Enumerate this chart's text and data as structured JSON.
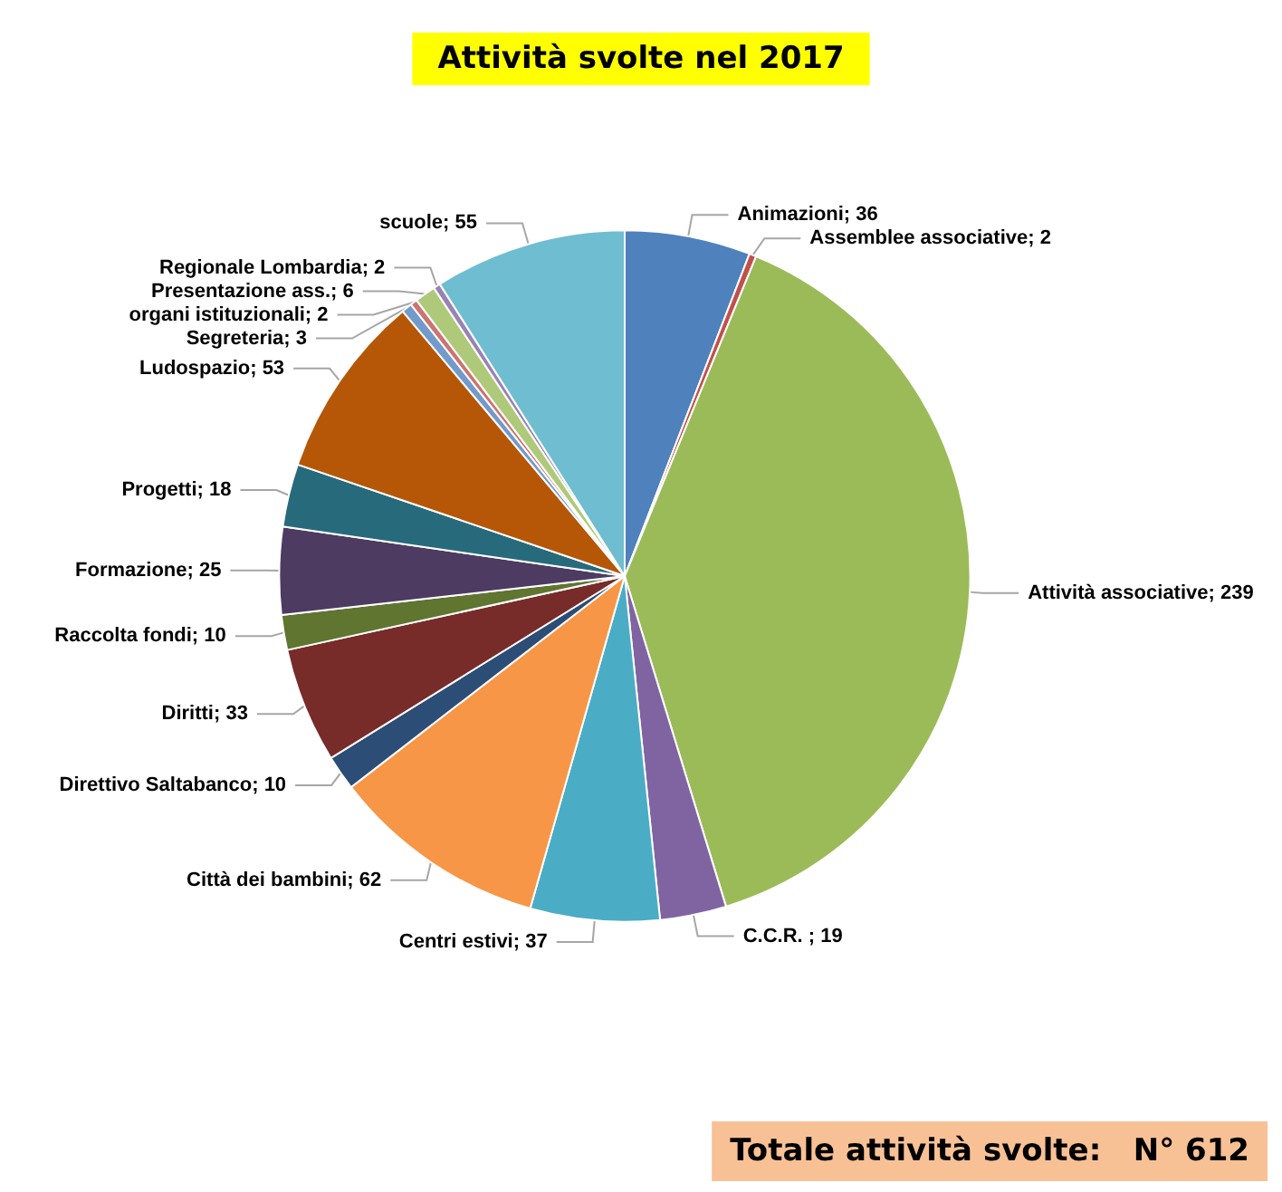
{
  "chart_data": {
    "type": "pie",
    "title": "Attività svolte nel 2017",
    "categories": [
      "Animazioni",
      "Assemblee associative",
      "Attività associative",
      "C.C.R. ",
      "Centri estivi",
      "Città dei bambini",
      "Direttivo Saltabanco",
      "Diritti",
      "Raccolta fondi",
      "Formazione",
      "Progetti",
      "Ludospazio",
      "Segreteria",
      "organi istituzionali",
      "Presentazione ass.",
      "Regionale Lombardia",
      "scuole"
    ],
    "values": [
      36,
      2,
      239,
      19,
      37,
      62,
      10,
      33,
      10,
      25,
      18,
      53,
      3,
      2,
      6,
      2,
      55
    ],
    "colors": [
      "#4f81bd",
      "#c0504d",
      "#9bbb59",
      "#8064a2",
      "#4bacc6",
      "#f79646",
      "#2c4d75",
      "#772c2a",
      "#5f7530",
      "#4d3b62",
      "#276a7c",
      "#b65708",
      "#729aca",
      "#cd7371",
      "#afc97a",
      "#9983b5",
      "#6fbdd1"
    ],
    "value_labels": [
      "; 36",
      "; 2",
      "; 239",
      "; 19",
      "; 37",
      "; 62",
      "; 10",
      "; 33",
      "; 10",
      "; 25",
      "; 18",
      "; 53",
      "; 3",
      "; 2",
      "; 6",
      "; 2",
      "; 55"
    ],
    "annotations": [
      "Totale attività svolte:   N° 612"
    ]
  }
}
